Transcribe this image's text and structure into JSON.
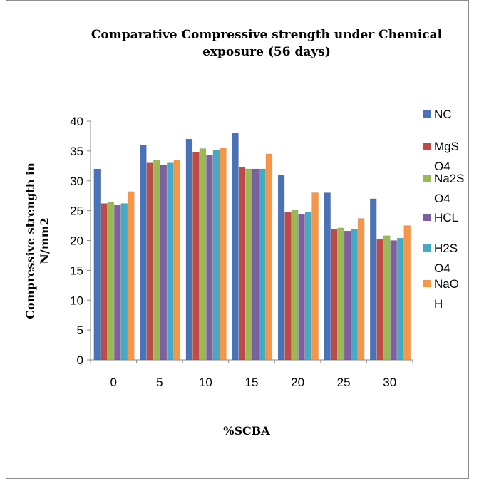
{
  "chart_data": {
    "type": "bar",
    "title": [
      "Comparative Compressive strength under Chemical",
      "exposure (56 days)"
    ],
    "xlabel": "%SCBA",
    "ylabel": [
      "Compressive strength in",
      "N/mm2"
    ],
    "categories": [
      "0",
      "5",
      "10",
      "15",
      "20",
      "25",
      "30"
    ],
    "ylim": [
      0,
      40
    ],
    "yticks": [
      "0",
      "5",
      "10",
      "15",
      "20",
      "25",
      "30",
      "35",
      "40"
    ],
    "grid": false,
    "legend_position": "right",
    "series": [
      {
        "name": "NC",
        "legend_lines": [
          "NC"
        ],
        "color": "#4A72B8",
        "values": [
          32,
          36,
          37,
          38,
          31,
          28,
          27
        ]
      },
      {
        "name": "MgSO4",
        "legend_lines": [
          "MgS",
          "O4"
        ],
        "color": "#BE4B48",
        "values": [
          26.2,
          33,
          34.8,
          32.3,
          24.8,
          21.9,
          20.2
        ]
      },
      {
        "name": "Na2SO4",
        "legend_lines": [
          "Na2S",
          "O4"
        ],
        "color": "#98B954",
        "values": [
          26.5,
          33.5,
          35.4,
          32,
          25.1,
          22.1,
          20.8
        ]
      },
      {
        "name": "HCL",
        "legend_lines": [
          "HCL"
        ],
        "color": "#7D60A0",
        "values": [
          25.9,
          32.6,
          34.3,
          32,
          24.4,
          21.6,
          20
        ]
      },
      {
        "name": "H2SO4",
        "legend_lines": [
          "H2S",
          "O4"
        ],
        "color": "#46AAC5",
        "values": [
          26.2,
          33,
          35.1,
          32,
          24.8,
          21.9,
          20.4
        ]
      },
      {
        "name": "NaOH",
        "legend_lines": [
          "NaO",
          "H"
        ],
        "color": "#F79646",
        "values": [
          28.2,
          33.5,
          35.5,
          34.5,
          28,
          23.7,
          22.5
        ]
      }
    ]
  }
}
